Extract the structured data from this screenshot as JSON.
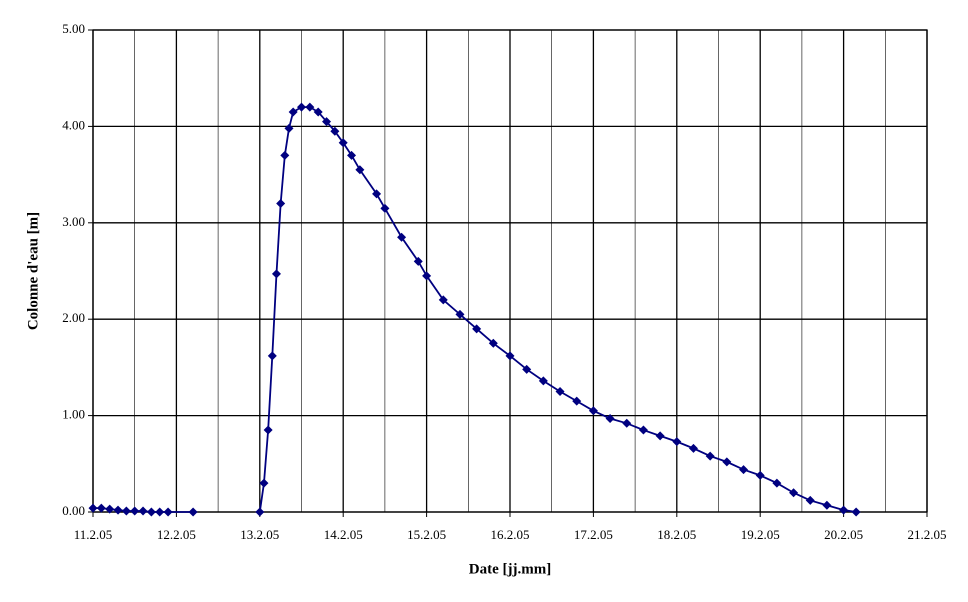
{
  "chart_data": {
    "type": "line",
    "x_label": "Date [jj.mm]",
    "y_label": "Colonne d'eau [m]",
    "xlim": [
      11,
      21
    ],
    "xticks": [
      {
        "value": 11,
        "label": "11.2.05"
      },
      {
        "value": 12,
        "label": "12.2.05"
      },
      {
        "value": 13,
        "label": "13.2.05"
      },
      {
        "value": 14,
        "label": "14.2.05"
      },
      {
        "value": 15,
        "label": "15.2.05"
      },
      {
        "value": 16,
        "label": "16.2.05"
      },
      {
        "value": 17,
        "label": "17.2.05"
      },
      {
        "value": 18,
        "label": "18.2.05"
      },
      {
        "value": 19,
        "label": "19.2.05"
      },
      {
        "value": 20,
        "label": "20.2.05"
      },
      {
        "value": 21,
        "label": "21.2.05"
      }
    ],
    "x_minor_ticks": [
      11.5,
      12.5,
      13.5,
      14.5,
      15.5,
      16.5,
      17.5,
      18.5,
      19.5,
      20.5
    ],
    "ylim": [
      0,
      5
    ],
    "yticks": [
      {
        "value": 0,
        "label": "0.00"
      },
      {
        "value": 1,
        "label": "1.00"
      },
      {
        "value": 2,
        "label": "2.00"
      },
      {
        "value": 3,
        "label": "3.00"
      },
      {
        "value": 4,
        "label": "4.00"
      },
      {
        "value": 5,
        "label": "5.00"
      }
    ],
    "grid": true,
    "series": [
      {
        "color": "#000080",
        "x": [
          11.0,
          11.1,
          11.2,
          11.3,
          11.4,
          11.5,
          11.6,
          11.7,
          11.8,
          11.9,
          12.2,
          12.6,
          13.0,
          13.05,
          13.1,
          13.15,
          13.2,
          13.25,
          13.3,
          13.35,
          13.4,
          13.5,
          13.6,
          13.7,
          13.8,
          13.9,
          14.0,
          14.1,
          14.2,
          14.4,
          14.5,
          14.7,
          14.9,
          15.0,
          15.2,
          15.4,
          15.6,
          15.8,
          16.0,
          16.2,
          16.4,
          16.6,
          16.8,
          17.0,
          17.2,
          17.4,
          17.6,
          17.8,
          18.0,
          18.2,
          18.4,
          18.6,
          18.8,
          19.0,
          19.2,
          19.4,
          19.6,
          19.8,
          20.0,
          20.15
        ],
        "values": [
          0.04,
          0.04,
          0.03,
          0.02,
          0.01,
          0.01,
          0.01,
          0.0,
          0.0,
          0.0,
          0.0,
          null,
          0.0,
          0.3,
          0.85,
          1.62,
          2.47,
          3.2,
          3.7,
          3.98,
          4.15,
          4.2,
          4.2,
          4.15,
          4.05,
          3.95,
          3.83,
          3.7,
          3.55,
          3.3,
          3.15,
          2.85,
          2.6,
          2.45,
          2.2,
          2.05,
          1.9,
          1.75,
          1.62,
          1.48,
          1.36,
          1.25,
          1.15,
          1.05,
          0.97,
          0.92,
          0.85,
          0.79,
          0.73,
          0.66,
          0.58,
          0.52,
          0.44,
          0.38,
          0.3,
          0.2,
          0.12,
          0.07,
          0.02,
          0.0
        ]
      }
    ]
  }
}
